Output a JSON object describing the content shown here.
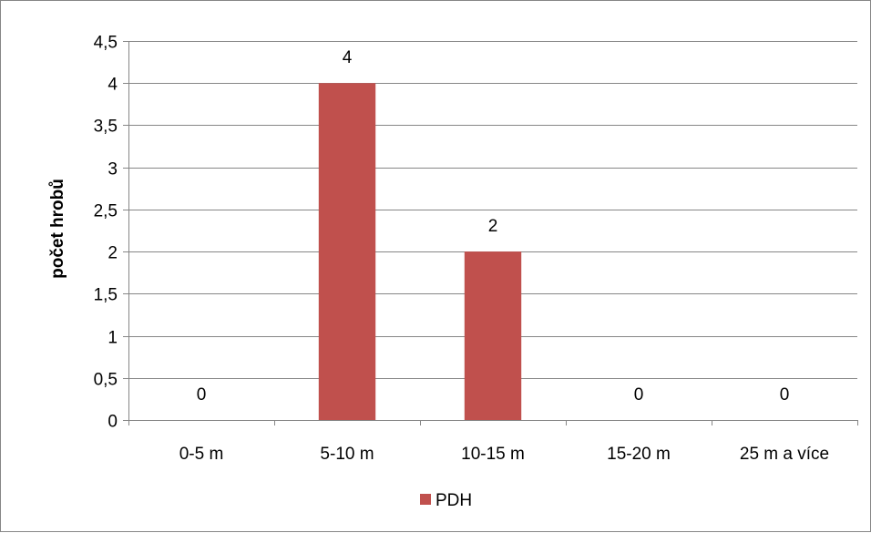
{
  "chart_data": {
    "type": "bar",
    "categories": [
      "0-5 m",
      "5-10 m",
      "10-15 m",
      "15-20 m",
      "25 m a více"
    ],
    "series": [
      {
        "name": "PDH",
        "values": [
          0,
          4,
          2,
          0,
          0
        ],
        "color": "#c0504d"
      }
    ],
    "data_labels": [
      "0",
      "4",
      "2",
      "0",
      "0"
    ],
    "ylabel": "počet hrobů",
    "ylim": [
      0,
      4.5
    ],
    "yticks": [
      0,
      0.5,
      1,
      1.5,
      2,
      2.5,
      3,
      3.5,
      4,
      4.5
    ],
    "ytick_labels": [
      "0",
      "0,5",
      "1",
      "1,5",
      "2",
      "2,5",
      "3",
      "3,5",
      "4",
      "4,5"
    ],
    "grid": true,
    "gridline_color": "#868686",
    "legend_position": "bottom"
  }
}
